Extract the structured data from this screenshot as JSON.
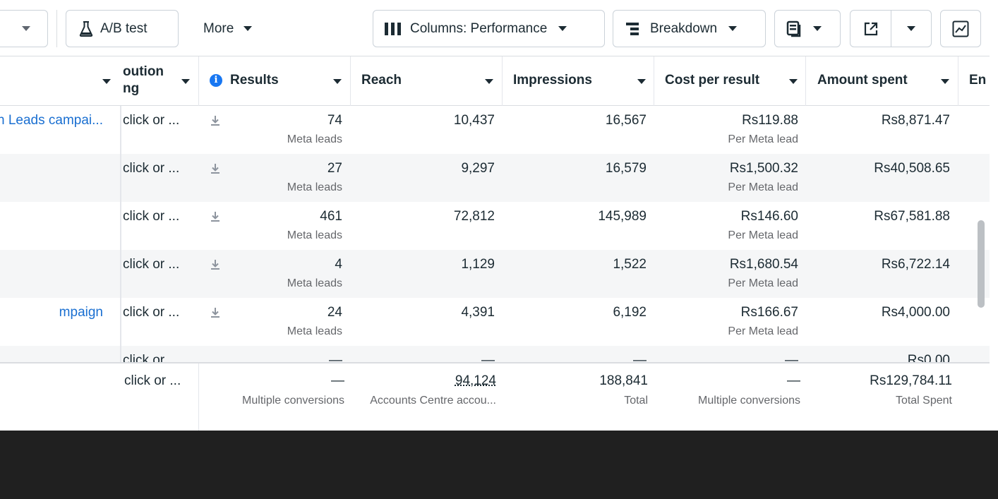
{
  "toolbar": {
    "ab_test_label": "A/B test",
    "more_label": "More",
    "columns_label": "Columns: Performance",
    "breakdown_label": "Breakdown"
  },
  "header": {
    "attribution": "oution\nng",
    "attribution_line1": "oution",
    "attribution_line2": "ng",
    "results": "Results",
    "reach": "Reach",
    "impressions": "Impressions",
    "cost_per_result": "Cost per result",
    "amount_spent": "Amount spent",
    "ends": "En"
  },
  "rows": [
    {
      "name": "n Leads campai...",
      "attribution": "click or ...",
      "results": "74",
      "results_sub": "Meta leads",
      "reach": "10,437",
      "impressions": "16,567",
      "cost": "Rs119.88",
      "cost_sub": "Per Meta lead",
      "spent": "Rs8,871.47"
    },
    {
      "name": "",
      "attribution": "click or ...",
      "results": "27",
      "results_sub": "Meta leads",
      "reach": "9,297",
      "impressions": "16,579",
      "cost": "Rs1,500.32",
      "cost_sub": "Per Meta lead",
      "spent": "Rs40,508.65"
    },
    {
      "name": "",
      "attribution": "click or ...",
      "results": "461",
      "results_sub": "Meta leads",
      "reach": "72,812",
      "impressions": "145,989",
      "cost": "Rs146.60",
      "cost_sub": "Per Meta lead",
      "spent": "Rs67,581.88"
    },
    {
      "name": "",
      "attribution": "click or ...",
      "results": "4",
      "results_sub": "Meta leads",
      "reach": "1,129",
      "impressions": "1,522",
      "cost": "Rs1,680.54",
      "cost_sub": "Per Meta lead",
      "spent": "Rs6,722.14"
    },
    {
      "name": "mpaign",
      "attribution": "click or ...",
      "results": "24",
      "results_sub": "Meta leads",
      "reach": "4,391",
      "impressions": "6,192",
      "cost": "Rs166.67",
      "cost_sub": "Per Meta lead",
      "spent": "Rs4,000.00"
    },
    {
      "name": "",
      "attribution": "click or",
      "results": "—",
      "results_sub": "",
      "reach": "—",
      "impressions": "—",
      "cost": "—",
      "cost_sub": "",
      "spent": "Rs0.00"
    }
  ],
  "totals": {
    "attribution": "click or ...",
    "results": "—",
    "results_sub": "Multiple conversions",
    "reach": "94,124",
    "reach_sub": "Accounts Centre accou...",
    "impressions": "188,841",
    "impressions_sub": "Total",
    "cost": "—",
    "cost_sub": "Multiple conversions",
    "spent": "Rs129,784.11",
    "spent_sub": "Total Spent"
  },
  "colors": {
    "link": "#1a6fd1",
    "info_icon": "#1877f2",
    "border": "#cbd2d9",
    "alt_row": "#f5f6f7"
  },
  "icons": [
    "chevron-down-icon",
    "flask-icon",
    "columns-icon",
    "breakdown-icon",
    "reports-icon",
    "export-icon",
    "chart-icon",
    "info-icon",
    "download-icon"
  ]
}
